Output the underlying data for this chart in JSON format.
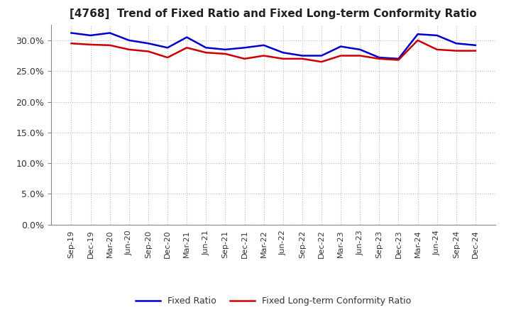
{
  "title": "[4768]  Trend of Fixed Ratio and Fixed Long-term Conformity Ratio",
  "x_labels": [
    "Sep-19",
    "Dec-19",
    "Mar-20",
    "Jun-20",
    "Sep-20",
    "Dec-20",
    "Mar-21",
    "Jun-21",
    "Sep-21",
    "Dec-21",
    "Mar-22",
    "Jun-22",
    "Sep-22",
    "Dec-22",
    "Mar-23",
    "Jun-23",
    "Sep-23",
    "Dec-23",
    "Mar-24",
    "Jun-24",
    "Sep-24",
    "Dec-24"
  ],
  "fixed_ratio": [
    31.2,
    30.8,
    31.2,
    30.0,
    29.5,
    28.8,
    30.5,
    28.8,
    28.5,
    28.8,
    29.2,
    28.0,
    27.5,
    27.5,
    29.0,
    28.5,
    27.2,
    27.0,
    31.0,
    30.8,
    29.5,
    29.2
  ],
  "fixed_lt_ratio": [
    29.5,
    29.3,
    29.2,
    28.5,
    28.2,
    27.2,
    28.8,
    28.0,
    27.8,
    27.0,
    27.5,
    27.0,
    27.0,
    26.5,
    27.5,
    27.5,
    27.0,
    26.8,
    30.0,
    28.5,
    28.3,
    28.3
  ],
  "fixed_ratio_color": "#0000CC",
  "fixed_lt_ratio_color": "#CC0000",
  "ylim_min": 0,
  "ylim_max": 32.5,
  "yticks": [
    0.0,
    5.0,
    10.0,
    15.0,
    20.0,
    25.0,
    30.0
  ],
  "background_color": "#FFFFFF",
  "plot_background_color": "#FFFFFF",
  "grid_color": "#AAAAAA",
  "title_color": "#222222",
  "legend_labels": [
    "Fixed Ratio",
    "Fixed Long-term Conformity Ratio"
  ],
  "line_width": 1.8
}
